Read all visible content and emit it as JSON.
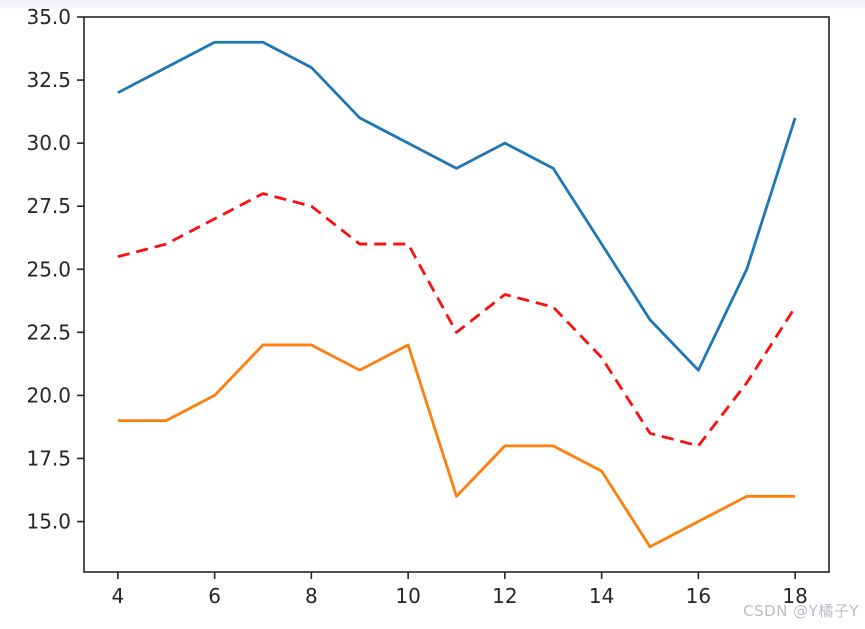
{
  "chart_data": {
    "type": "line",
    "x": [
      4,
      5,
      6,
      7,
      8,
      9,
      10,
      11,
      12,
      13,
      14,
      15,
      16,
      17,
      18
    ],
    "series": [
      {
        "name": "blue-solid-line",
        "color": "#1f77b4",
        "style": "solid",
        "values": [
          32,
          33,
          34,
          34,
          33,
          31,
          30,
          29,
          30,
          29,
          26,
          23,
          21,
          25,
          31
        ]
      },
      {
        "name": "red-dashed-line",
        "color": "#fb0f0f",
        "style": "dashed",
        "values": [
          25.5,
          26,
          27,
          28,
          27.5,
          26,
          26,
          22.5,
          24,
          23.5,
          21.5,
          18.5,
          18,
          20.5,
          23.5
        ]
      },
      {
        "name": "orange-solid-line",
        "color": "#ff7f0e",
        "style": "solid",
        "values": [
          19,
          19,
          20,
          22,
          22,
          21,
          22,
          16,
          18,
          18,
          17,
          14,
          15,
          16,
          16
        ]
      }
    ],
    "xlim": [
      3.3,
      18.7
    ],
    "ylim": [
      13,
      35
    ],
    "x_ticks": [
      4,
      6,
      8,
      10,
      12,
      14,
      16,
      18
    ],
    "x_tick_labels": [
      "4",
      "6",
      "8",
      "10",
      "12",
      "14",
      "16",
      "18"
    ],
    "y_ticks": [
      15.0,
      17.5,
      20.0,
      22.5,
      25.0,
      27.5,
      30.0,
      32.5,
      35.0
    ],
    "y_tick_labels": [
      "15.0",
      "17.5",
      "20.0",
      "22.5",
      "25.0",
      "27.5",
      "30.0",
      "32.5",
      "35.0"
    ],
    "grid": false,
    "legend": "none",
    "axis_color": "#262626"
  },
  "watermark": {
    "text": "CSDN @Y橘子Y"
  }
}
